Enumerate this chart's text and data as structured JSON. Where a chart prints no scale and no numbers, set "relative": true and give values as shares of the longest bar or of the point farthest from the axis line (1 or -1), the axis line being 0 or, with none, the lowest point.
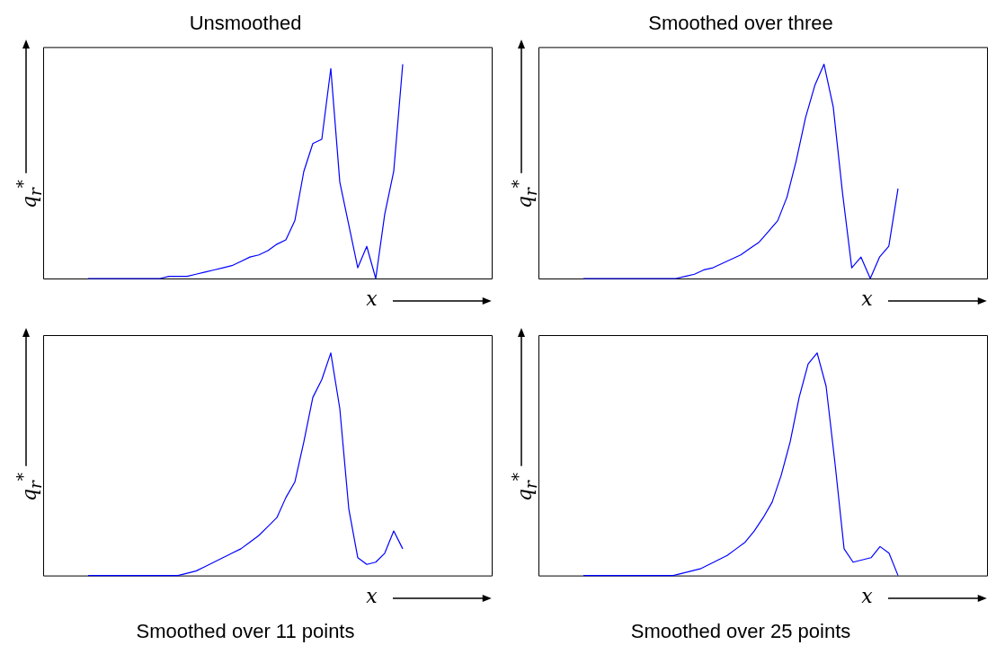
{
  "chart_data": [
    {
      "type": "line",
      "title": "Unsmoothed",
      "xlabel": "x",
      "ylabel": "q$_{r}$$^{*}$",
      "relative": true,
      "categories": [
        null,
        null,
        null,
        null,
        null,
        null,
        null,
        null,
        null,
        null,
        null,
        null,
        null,
        null,
        null,
        null,
        null,
        null,
        null,
        null,
        null,
        null,
        null,
        null,
        null,
        null,
        null,
        null,
        null,
        null,
        null,
        null,
        null,
        null,
        null,
        null
      ],
      "series": [
        {
          "color": "#0000ff",
          "values": [
            0,
            0,
            0,
            0,
            0,
            0,
            0,
            0,
            0,
            0.01,
            0.01,
            0.01,
            0.02,
            0.03,
            0.04,
            0.05,
            0.06,
            0.08,
            0.1,
            0.11,
            0.13,
            0.16,
            0.18,
            0.27,
            0.5,
            0.63,
            0.65,
            0.98,
            0.45,
            0.25,
            0.05,
            0.15,
            0,
            0.3,
            0.5,
            1.0
          ]
        }
      ]
    },
    {
      "type": "line",
      "title": "Smoothed over three",
      "xlabel": "x",
      "ylabel": "q$_{r}$$^{*}$",
      "relative": true,
      "categories": [
        null,
        null,
        null,
        null,
        null,
        null,
        null,
        null,
        null,
        null,
        null,
        null,
        null,
        null,
        null,
        null,
        null,
        null,
        null,
        null,
        null,
        null,
        null,
        null,
        null,
        null,
        null,
        null,
        null,
        null,
        null,
        null,
        null,
        null,
        null
      ],
      "series": [
        {
          "color": "#0000ff",
          "values": [
            0,
            0,
            0,
            0,
            0,
            0,
            0,
            0,
            0,
            0,
            0,
            0.01,
            0.02,
            0.04,
            0.05,
            0.07,
            0.09,
            0.11,
            0.14,
            0.17,
            0.22,
            0.27,
            0.38,
            0.55,
            0.75,
            0.9,
            1.0,
            0.8,
            0.4,
            0.05,
            0.1,
            0,
            0.1,
            0.15,
            0.42
          ]
        }
      ]
    },
    {
      "type": "line",
      "title": "Smoothed over 11 points",
      "xlabel": "x",
      "ylabel": "q$_{r}$$^{*}$",
      "relative": true,
      "categories": [
        null,
        null,
        null,
        null,
        null,
        null,
        null,
        null,
        null,
        null,
        null,
        null,
        null,
        null,
        null,
        null,
        null,
        null,
        null,
        null,
        null,
        null,
        null,
        null,
        null,
        null,
        null,
        null,
        null,
        null,
        null,
        null,
        null,
        null,
        null,
        null
      ],
      "series": [
        {
          "color": "#0000ff",
          "values": [
            0,
            0,
            0,
            0,
            0,
            0,
            0,
            0,
            0,
            0,
            0,
            0.01,
            0.02,
            0.04,
            0.06,
            0.08,
            0.1,
            0.12,
            0.15,
            0.18,
            0.22,
            0.26,
            0.35,
            0.42,
            0.6,
            0.8,
            0.88,
            1.0,
            0.75,
            0.3,
            0.08,
            0.05,
            0.06,
            0.1,
            0.2,
            0.12
          ]
        }
      ]
    },
    {
      "type": "line",
      "title": "Smoothed over 25 points",
      "xlabel": "x",
      "ylabel": "q$_{r}$$^{*}$",
      "relative": true,
      "categories": [
        null,
        null,
        null,
        null,
        null,
        null,
        null,
        null,
        null,
        null,
        null,
        null,
        null,
        null,
        null,
        null,
        null,
        null,
        null,
        null,
        null,
        null,
        null,
        null,
        null,
        null,
        null,
        null,
        null,
        null,
        null,
        null,
        null,
        null,
        null,
        null
      ],
      "series": [
        {
          "color": "#0000ff",
          "values": [
            0,
            0,
            0,
            0,
            0,
            0,
            0,
            0,
            0,
            0,
            0,
            0.01,
            0.02,
            0.03,
            0.05,
            0.07,
            0.09,
            0.12,
            0.15,
            0.2,
            0.26,
            0.33,
            0.45,
            0.6,
            0.8,
            0.95,
            1.0,
            0.85,
            0.5,
            0.12,
            0.06,
            0.07,
            0.08,
            0.13,
            0.1,
            0
          ]
        }
      ]
    }
  ]
}
